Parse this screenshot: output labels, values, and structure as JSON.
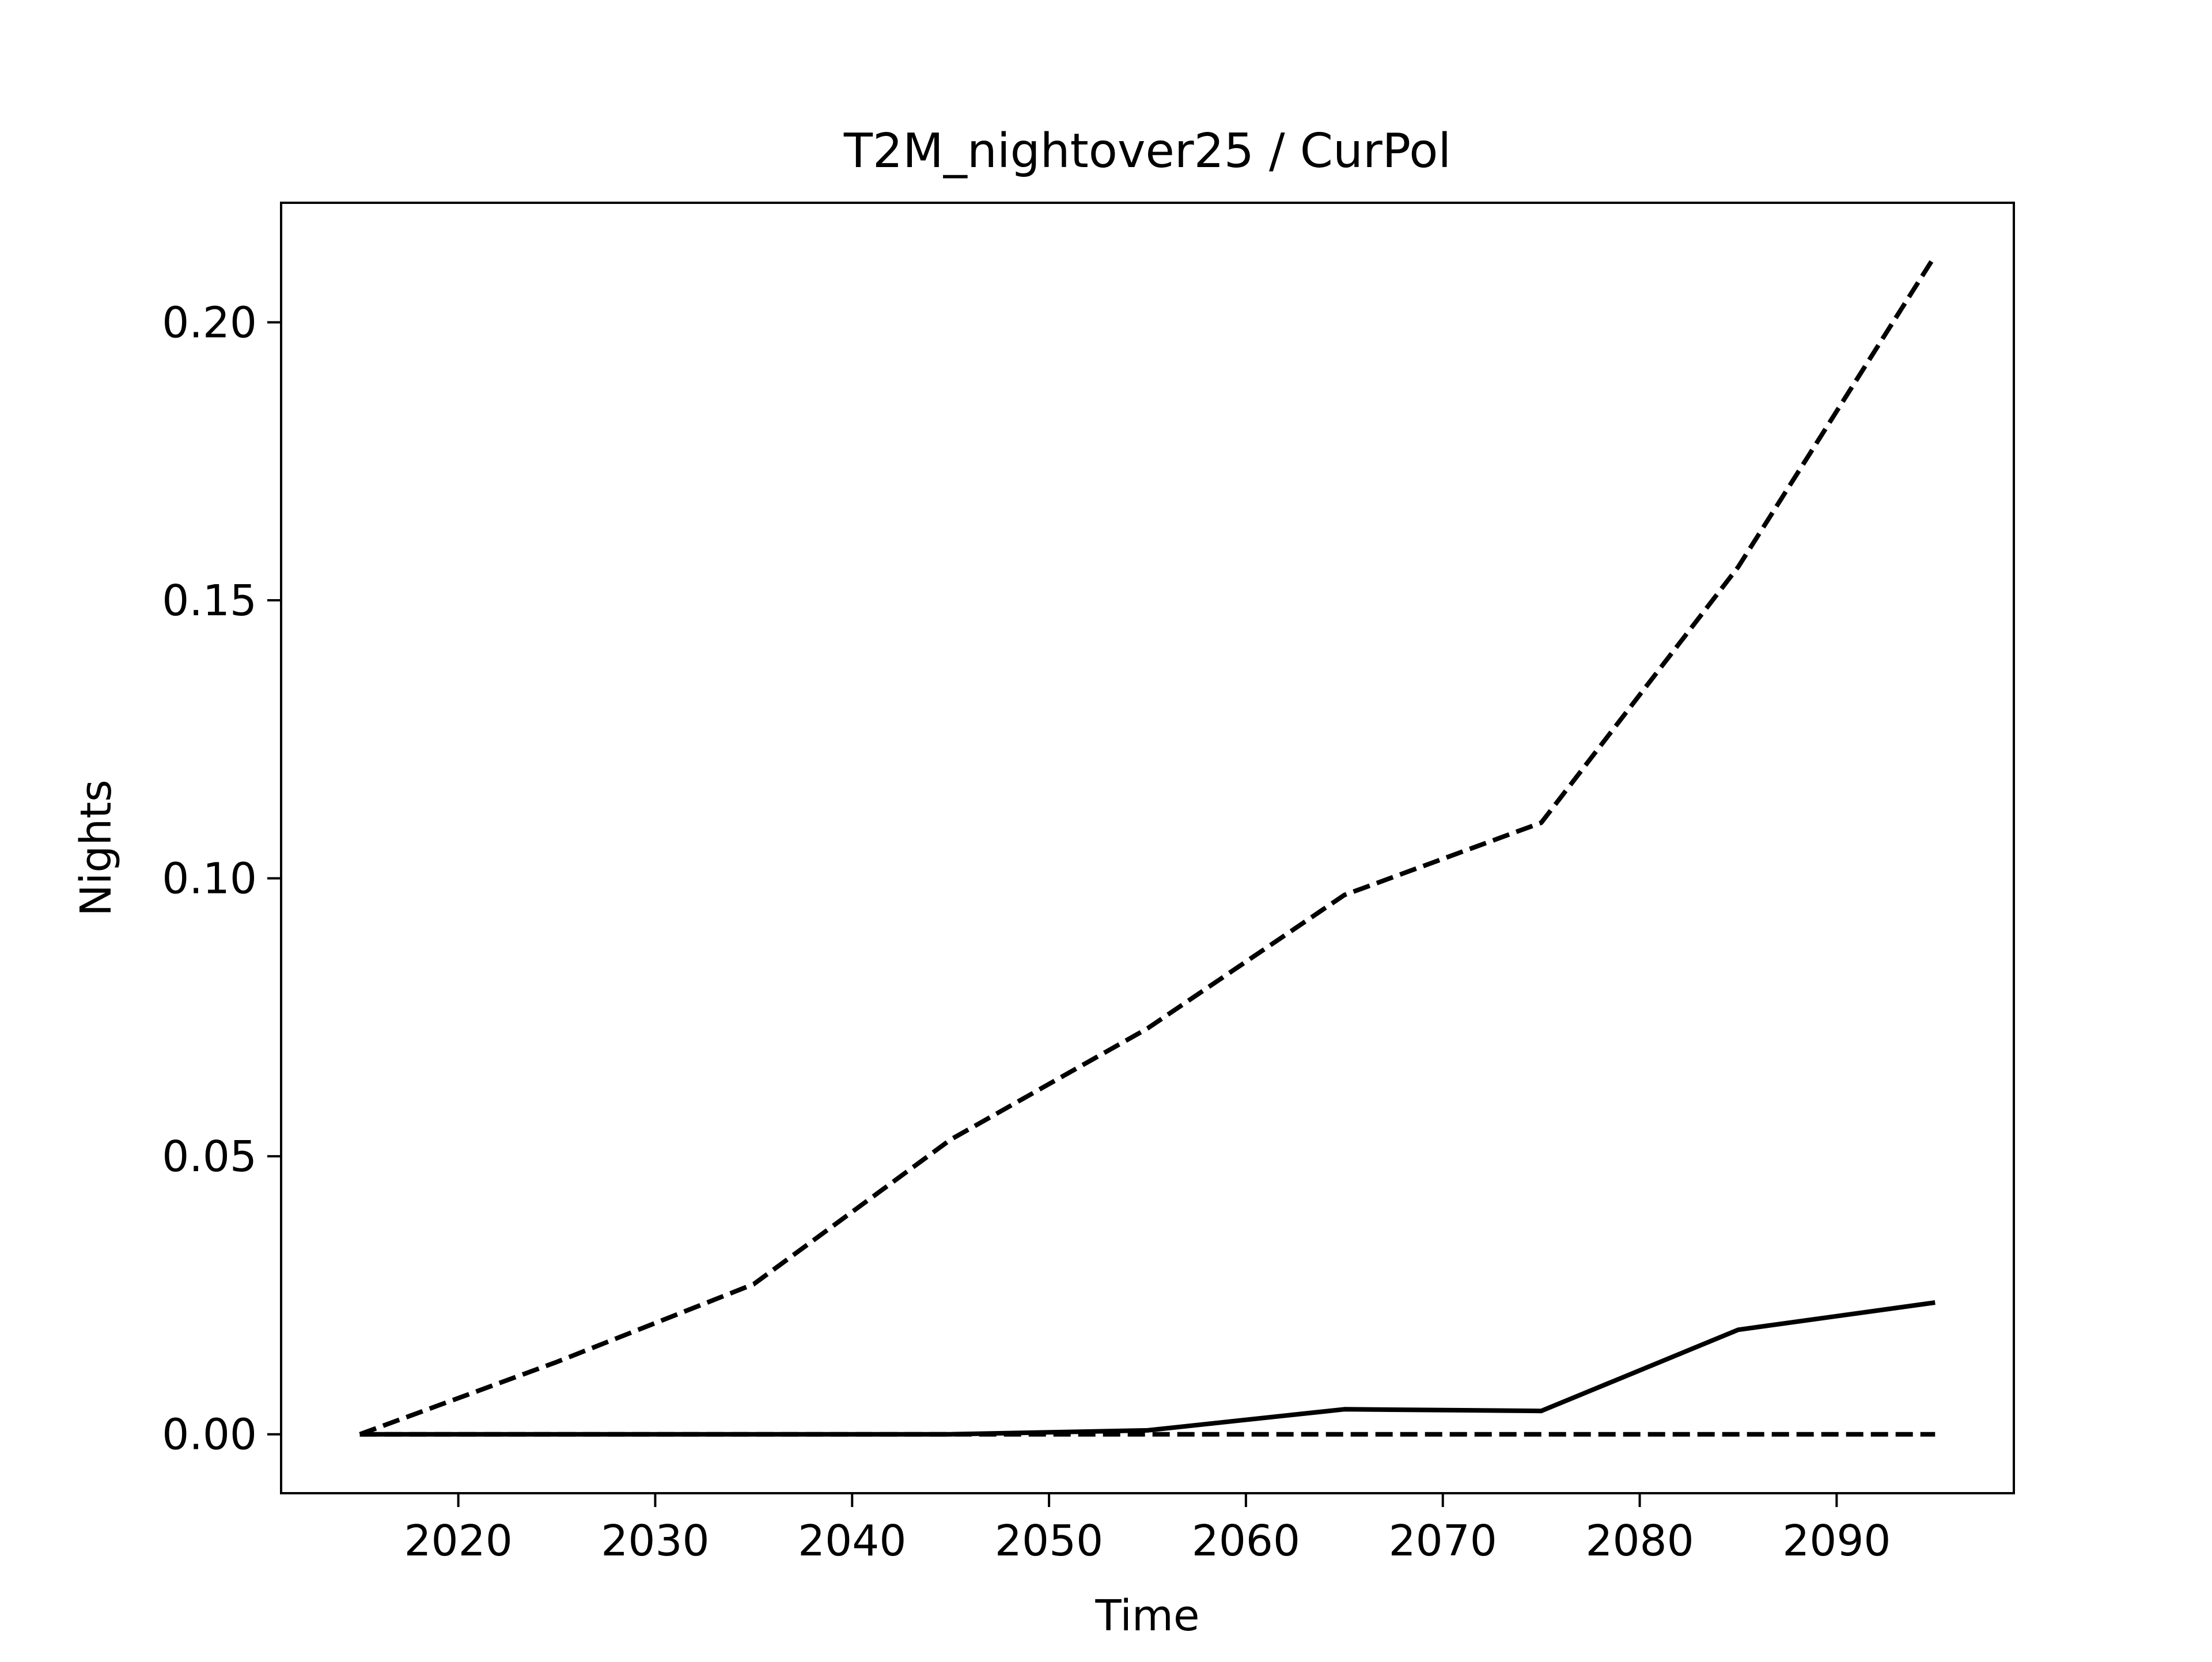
{
  "chart_data": {
    "type": "line",
    "title": "T2M_nightover25 / CurPol",
    "xlabel": "Time",
    "ylabel": "Nights",
    "xlim": [
      2011,
      2099
    ],
    "ylim": [
      -0.0106,
      0.2215
    ],
    "xticks": [
      2020,
      2030,
      2040,
      2050,
      2060,
      2070,
      2080,
      2090
    ],
    "yticks": [
      0.0,
      0.05,
      0.1,
      0.15,
      0.2
    ],
    "ytick_labels": [
      "0.00",
      "0.05",
      "0.10",
      "0.15",
      "0.20"
    ],
    "grid": false,
    "x": [
      2015,
      2025,
      2035,
      2045,
      2055,
      2065,
      2075,
      2085,
      2095
    ],
    "series": [
      {
        "style": "dashed",
        "color": "#000000",
        "values": [
          0.0,
          0.013,
          0.027,
          0.053,
          0.073,
          0.097,
          0.11,
          0.156,
          0.212
        ]
      },
      {
        "style": "solid",
        "color": "#000000",
        "values": [
          0.0,
          0.0,
          0.0,
          0.0,
          0.0007,
          0.0045,
          0.0042,
          0.0188,
          0.0237
        ]
      },
      {
        "style": "dashed",
        "color": "#000000",
        "values": [
          0.0,
          0.0,
          0.0,
          0.0,
          0.0,
          0.0,
          0.0,
          0.0,
          0.0
        ]
      }
    ]
  }
}
